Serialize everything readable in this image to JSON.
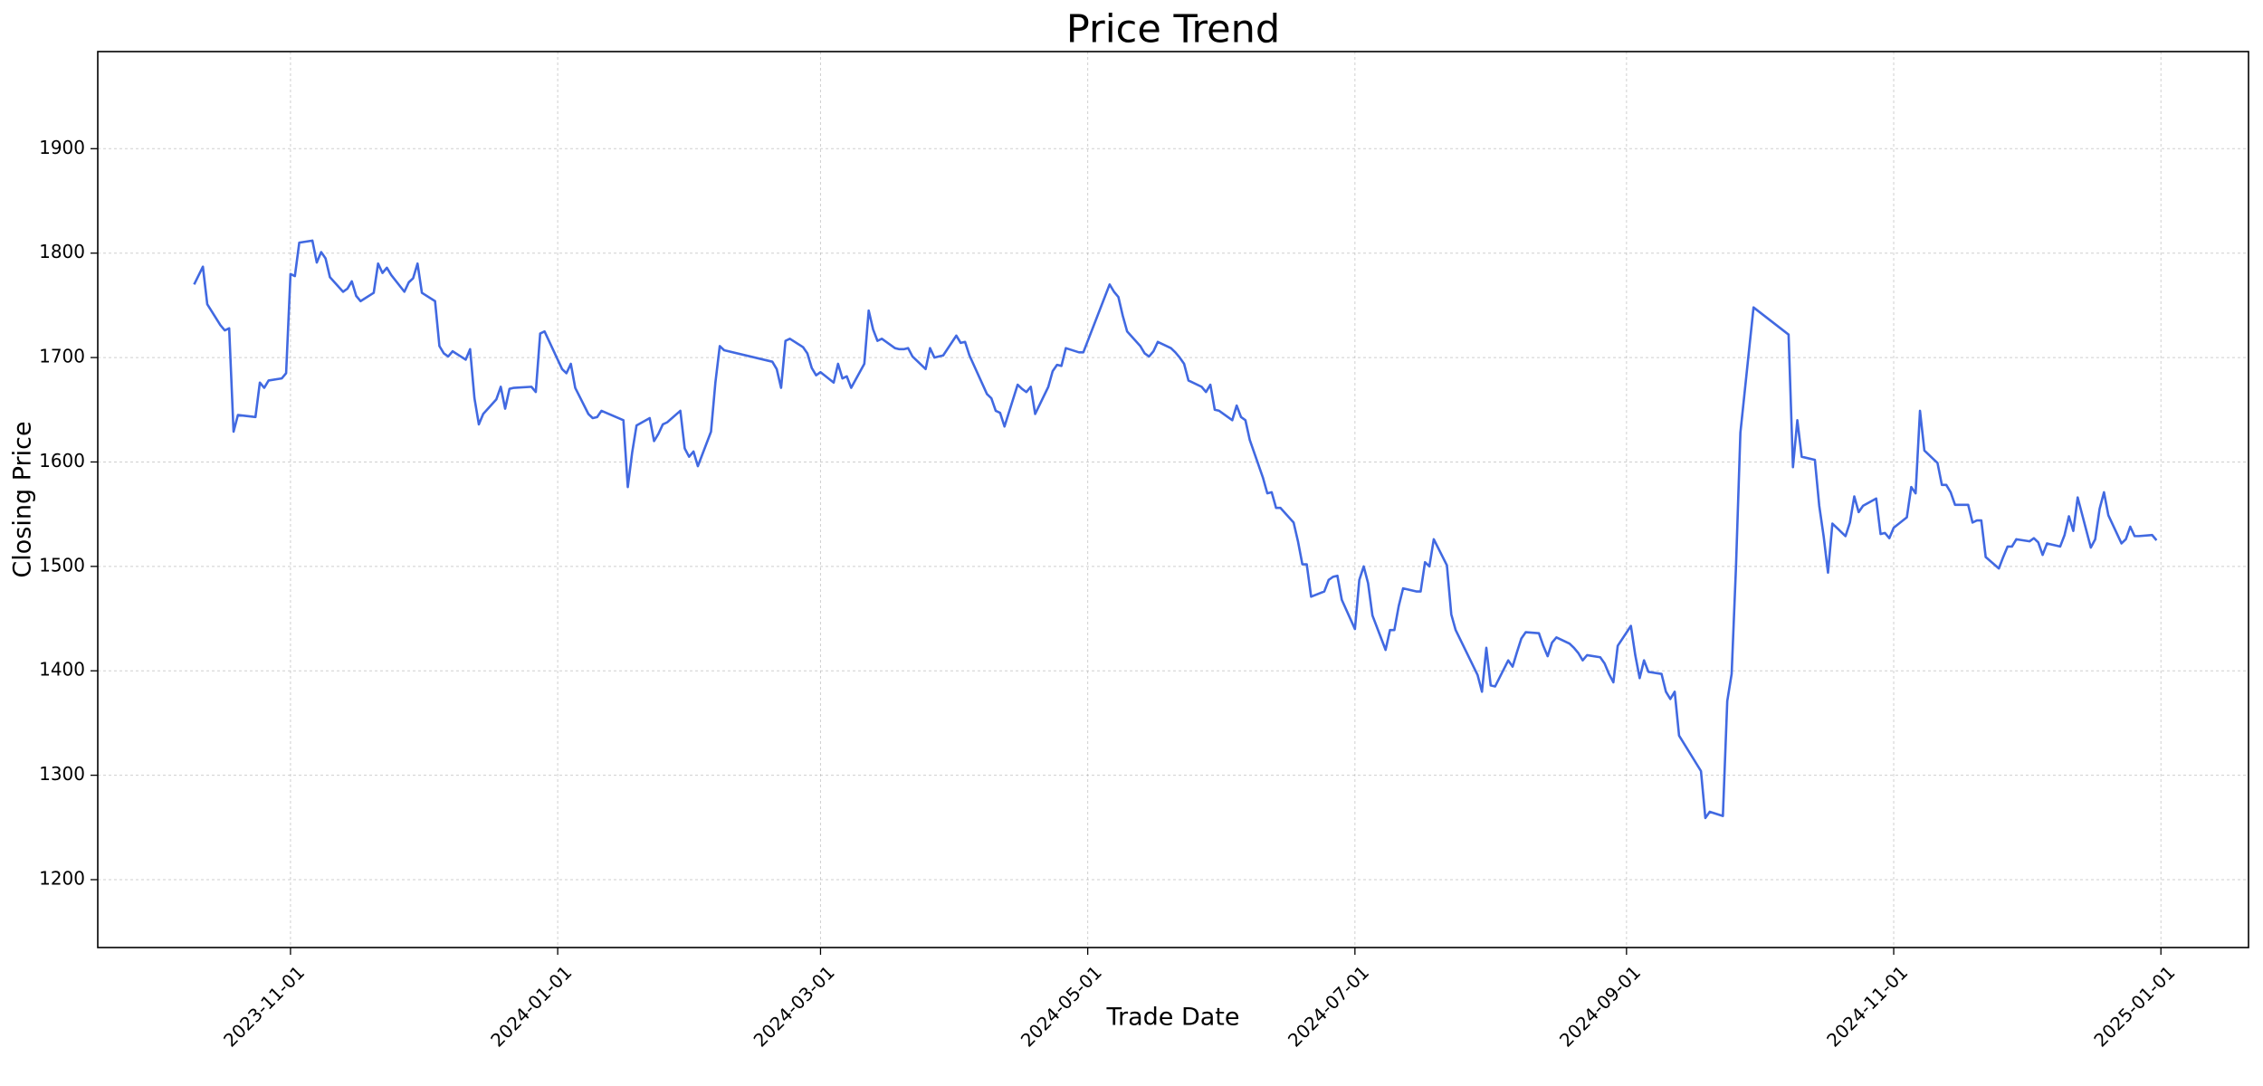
{
  "chart_data": {
    "type": "line",
    "title": "Price Trend",
    "x_label": "Trade Date",
    "y_label": "Closing Price",
    "color": "#4169e1",
    "grid": true,
    "xlim": [
      "2023-09-18",
      "2025-01-21"
    ],
    "xticks": [
      "2023-11-01",
      "2024-01-01",
      "2024-03-01",
      "2024-05-01",
      "2024-07-01",
      "2024-09-01",
      "2024-11-01",
      "2025-01-01"
    ],
    "ylim": [
      1135,
      1993
    ],
    "yticks": [
      1200,
      1300,
      1400,
      1500,
      1600,
      1700,
      1800,
      1900
    ],
    "x": [
      "2023-10-10",
      "2023-10-12",
      "2023-10-13",
      "2023-10-16",
      "2023-10-17",
      "2023-10-18",
      "2023-10-19",
      "2023-10-20",
      "2023-10-24",
      "2023-10-25",
      "2023-10-26",
      "2023-10-27",
      "2023-10-30",
      "2023-10-31",
      "2023-11-01",
      "2023-11-02",
      "2023-11-03",
      "2023-11-06",
      "2023-11-07",
      "2023-11-08",
      "2023-11-09",
      "2023-11-10",
      "2023-11-13",
      "2023-11-14",
      "2023-11-15",
      "2023-11-16",
      "2023-11-17",
      "2023-11-20",
      "2023-11-21",
      "2023-11-22",
      "2023-11-23",
      "2023-11-24",
      "2023-11-27",
      "2023-11-28",
      "2023-11-29",
      "2023-11-30",
      "2023-12-01",
      "2023-12-04",
      "2023-12-05",
      "2023-12-06",
      "2023-12-07",
      "2023-12-08",
      "2023-12-11",
      "2023-12-12",
      "2023-12-13",
      "2023-12-14",
      "2023-12-15",
      "2023-12-18",
      "2023-12-19",
      "2023-12-20",
      "2023-12-21",
      "2023-12-22",
      "2023-12-26",
      "2023-12-27",
      "2023-12-28",
      "2023-12-29",
      "2024-01-02",
      "2024-01-03",
      "2024-01-04",
      "2024-01-05",
      "2024-01-08",
      "2024-01-09",
      "2024-01-10",
      "2024-01-11",
      "2024-01-16",
      "2024-01-17",
      "2024-01-18",
      "2024-01-19",
      "2024-01-22",
      "2024-01-23",
      "2024-01-24",
      "2024-01-25",
      "2024-01-26",
      "2024-01-29",
      "2024-01-30",
      "2024-01-31",
      "2024-02-01",
      "2024-02-02",
      "2024-02-05",
      "2024-02-06",
      "2024-02-07",
      "2024-02-08",
      "2024-02-19",
      "2024-02-20",
      "2024-02-21",
      "2024-02-22",
      "2024-02-23",
      "2024-02-26",
      "2024-02-27",
      "2024-02-28",
      "2024-02-29",
      "2024-03-01",
      "2024-03-04",
      "2024-03-05",
      "2024-03-06",
      "2024-03-07",
      "2024-03-08",
      "2024-03-11",
      "2024-03-12",
      "2024-03-13",
      "2024-03-14",
      "2024-03-15",
      "2024-03-18",
      "2024-03-19",
      "2024-03-20",
      "2024-03-21",
      "2024-03-22",
      "2024-03-25",
      "2024-03-26",
      "2024-03-27",
      "2024-03-28",
      "2024-03-29",
      "2024-04-01",
      "2024-04-02",
      "2024-04-03",
      "2024-04-04",
      "2024-04-08",
      "2024-04-09",
      "2024-04-10",
      "2024-04-11",
      "2024-04-12",
      "2024-04-15",
      "2024-04-16",
      "2024-04-17",
      "2024-04-18",
      "2024-04-19",
      "2024-04-22",
      "2024-04-23",
      "2024-04-24",
      "2024-04-25",
      "2024-04-26",
      "2024-04-29",
      "2024-04-30",
      "2024-05-06",
      "2024-05-07",
      "2024-05-08",
      "2024-05-09",
      "2024-05-10",
      "2024-05-13",
      "2024-05-14",
      "2024-05-15",
      "2024-05-16",
      "2024-05-17",
      "2024-05-20",
      "2024-05-21",
      "2024-05-22",
      "2024-05-23",
      "2024-05-24",
      "2024-05-27",
      "2024-05-28",
      "2024-05-29",
      "2024-05-30",
      "2024-05-31",
      "2024-06-03",
      "2024-06-04",
      "2024-06-05",
      "2024-06-06",
      "2024-06-07",
      "2024-06-10",
      "2024-06-11",
      "2024-06-12",
      "2024-06-13",
      "2024-06-14",
      "2024-06-17",
      "2024-06-18",
      "2024-06-19",
      "2024-06-20",
      "2024-06-21",
      "2024-06-24",
      "2024-06-25",
      "2024-06-26",
      "2024-06-27",
      "2024-06-28",
      "2024-07-01",
      "2024-07-02",
      "2024-07-03",
      "2024-07-04",
      "2024-07-05",
      "2024-07-08",
      "2024-07-09",
      "2024-07-10",
      "2024-07-11",
      "2024-07-12",
      "2024-07-15",
      "2024-07-16",
      "2024-07-17",
      "2024-07-18",
      "2024-07-19",
      "2024-07-22",
      "2024-07-23",
      "2024-07-24",
      "2024-07-29",
      "2024-07-30",
      "2024-07-31",
      "2024-08-01",
      "2024-08-02",
      "2024-08-05",
      "2024-08-06",
      "2024-08-07",
      "2024-08-08",
      "2024-08-09",
      "2024-08-12",
      "2024-08-13",
      "2024-08-14",
      "2024-08-15",
      "2024-08-16",
      "2024-08-19",
      "2024-08-20",
      "2024-08-21",
      "2024-08-22",
      "2024-08-23",
      "2024-08-26",
      "2024-08-27",
      "2024-08-28",
      "2024-08-29",
      "2024-08-30",
      "2024-09-02",
      "2024-09-03",
      "2024-09-04",
      "2024-09-05",
      "2024-09-06",
      "2024-09-09",
      "2024-09-10",
      "2024-09-11",
      "2024-09-12",
      "2024-09-13",
      "2024-09-18",
      "2024-09-19",
      "2024-09-20",
      "2024-09-23",
      "2024-09-24",
      "2024-09-25",
      "2024-09-26",
      "2024-09-27",
      "2024-09-30",
      "2024-10-08",
      "2024-10-09",
      "2024-10-10",
      "2024-10-11",
      "2024-10-14",
      "2024-10-15",
      "2024-10-16",
      "2024-10-17",
      "2024-10-18",
      "2024-10-21",
      "2024-10-22",
      "2024-10-23",
      "2024-10-24",
      "2024-10-25",
      "2024-10-28",
      "2024-10-29",
      "2024-10-30",
      "2024-10-31",
      "2024-11-01",
      "2024-11-04",
      "2024-11-05",
      "2024-11-06",
      "2024-11-07",
      "2024-11-08",
      "2024-11-11",
      "2024-11-12",
      "2024-11-13",
      "2024-11-14",
      "2024-11-15",
      "2024-11-18",
      "2024-11-19",
      "2024-11-20",
      "2024-11-21",
      "2024-11-22",
      "2024-11-25",
      "2024-11-26",
      "2024-11-27",
      "2024-11-28",
      "2024-11-29",
      "2024-12-02",
      "2024-12-03",
      "2024-12-04",
      "2024-12-05",
      "2024-12-06",
      "2024-12-09",
      "2024-12-10",
      "2024-12-11",
      "2024-12-12",
      "2024-12-13",
      "2024-12-16",
      "2024-12-17",
      "2024-12-18",
      "2024-12-19",
      "2024-12-20",
      "2024-12-23",
      "2024-12-24",
      "2024-12-25",
      "2024-12-26",
      "2024-12-27",
      "2024-12-30",
      "2024-12-31"
    ],
    "values": [
      1770,
      1787,
      1751,
      1731,
      1726,
      1728,
      1629,
      1645,
      1643,
      1676,
      1671,
      1678,
      1680,
      1685,
      1780,
      1778,
      1810,
      1812,
      1791,
      1801,
      1795,
      1777,
      1763,
      1766,
      1773,
      1759,
      1754,
      1762,
      1790,
      1781,
      1786,
      1779,
      1763,
      1772,
      1776,
      1790,
      1762,
      1754,
      1711,
      1704,
      1701,
      1706,
      1698,
      1708,
      1661,
      1636,
      1646,
      1660,
      1672,
      1651,
      1670,
      1671,
      1672,
      1667,
      1723,
      1725,
      1689,
      1685,
      1694,
      1671,
      1646,
      1642,
      1643,
      1649,
      1640,
      1576,
      1609,
      1635,
      1642,
      1620,
      1627,
      1636,
      1638,
      1649,
      1613,
      1605,
      1610,
      1596,
      1629,
      1676,
      1711,
      1707,
      1696,
      1689,
      1671,
      1716,
      1718,
      1710,
      1704,
      1690,
      1683,
      1686,
      1676,
      1694,
      1680,
      1682,
      1671,
      1694,
      1745,
      1727,
      1716,
      1718,
      1709,
      1708,
      1708,
      1709,
      1701,
      1689,
      1709,
      1700,
      1701,
      1702,
      1721,
      1714,
      1715,
      1702,
      1665,
      1661,
      1649,
      1647,
      1634,
      1674,
      1670,
      1667,
      1672,
      1646,
      1672,
      1687,
      1693,
      1692,
      1709,
      1705,
      1705,
      1770,
      1763,
      1758,
      1740,
      1725,
      1711,
      1704,
      1701,
      1706,
      1715,
      1709,
      1705,
      1700,
      1694,
      1678,
      1672,
      1667,
      1674,
      1650,
      1649,
      1640,
      1654,
      1643,
      1640,
      1621,
      1585,
      1570,
      1571,
      1556,
      1556,
      1542,
      1524,
      1502,
      1502,
      1471,
      1476,
      1487,
      1490,
      1491,
      1468,
      1440,
      1487,
      1500,
      1484,
      1453,
      1420,
      1439,
      1439,
      1462,
      1479,
      1476,
      1476,
      1504,
      1500,
      1526,
      1501,
      1454,
      1439,
      1396,
      1380,
      1422,
      1386,
      1385,
      1410,
      1404,
      1418,
      1431,
      1437,
      1436,
      1424,
      1414,
      1427,
      1432,
      1426,
      1422,
      1417,
      1410,
      1415,
      1413,
      1407,
      1397,
      1389,
      1424,
      1443,
      1415,
      1393,
      1410,
      1399,
      1397,
      1380,
      1373,
      1380,
      1338,
      1304,
      1259,
      1265,
      1261,
      1371,
      1397,
      1500,
      1628,
      1748,
      1722,
      1595,
      1640,
      1605,
      1602,
      1558,
      1529,
      1494,
      1541,
      1529,
      1542,
      1567,
      1552,
      1558,
      1565,
      1531,
      1532,
      1527,
      1537,
      1547,
      1576,
      1570,
      1649,
      1611,
      1599,
      1578,
      1578,
      1571,
      1559,
      1559,
      1542,
      1544,
      1544,
      1509,
      1498,
      1509,
      1519,
      1519,
      1526,
      1524,
      1527,
      1523,
      1511,
      1522,
      1519,
      1530,
      1548,
      1534,
      1566,
      1518,
      1526,
      1555,
      1571,
      1549,
      1522,
      1526,
      1538,
      1529,
      1529,
      1530,
      1525
    ]
  }
}
